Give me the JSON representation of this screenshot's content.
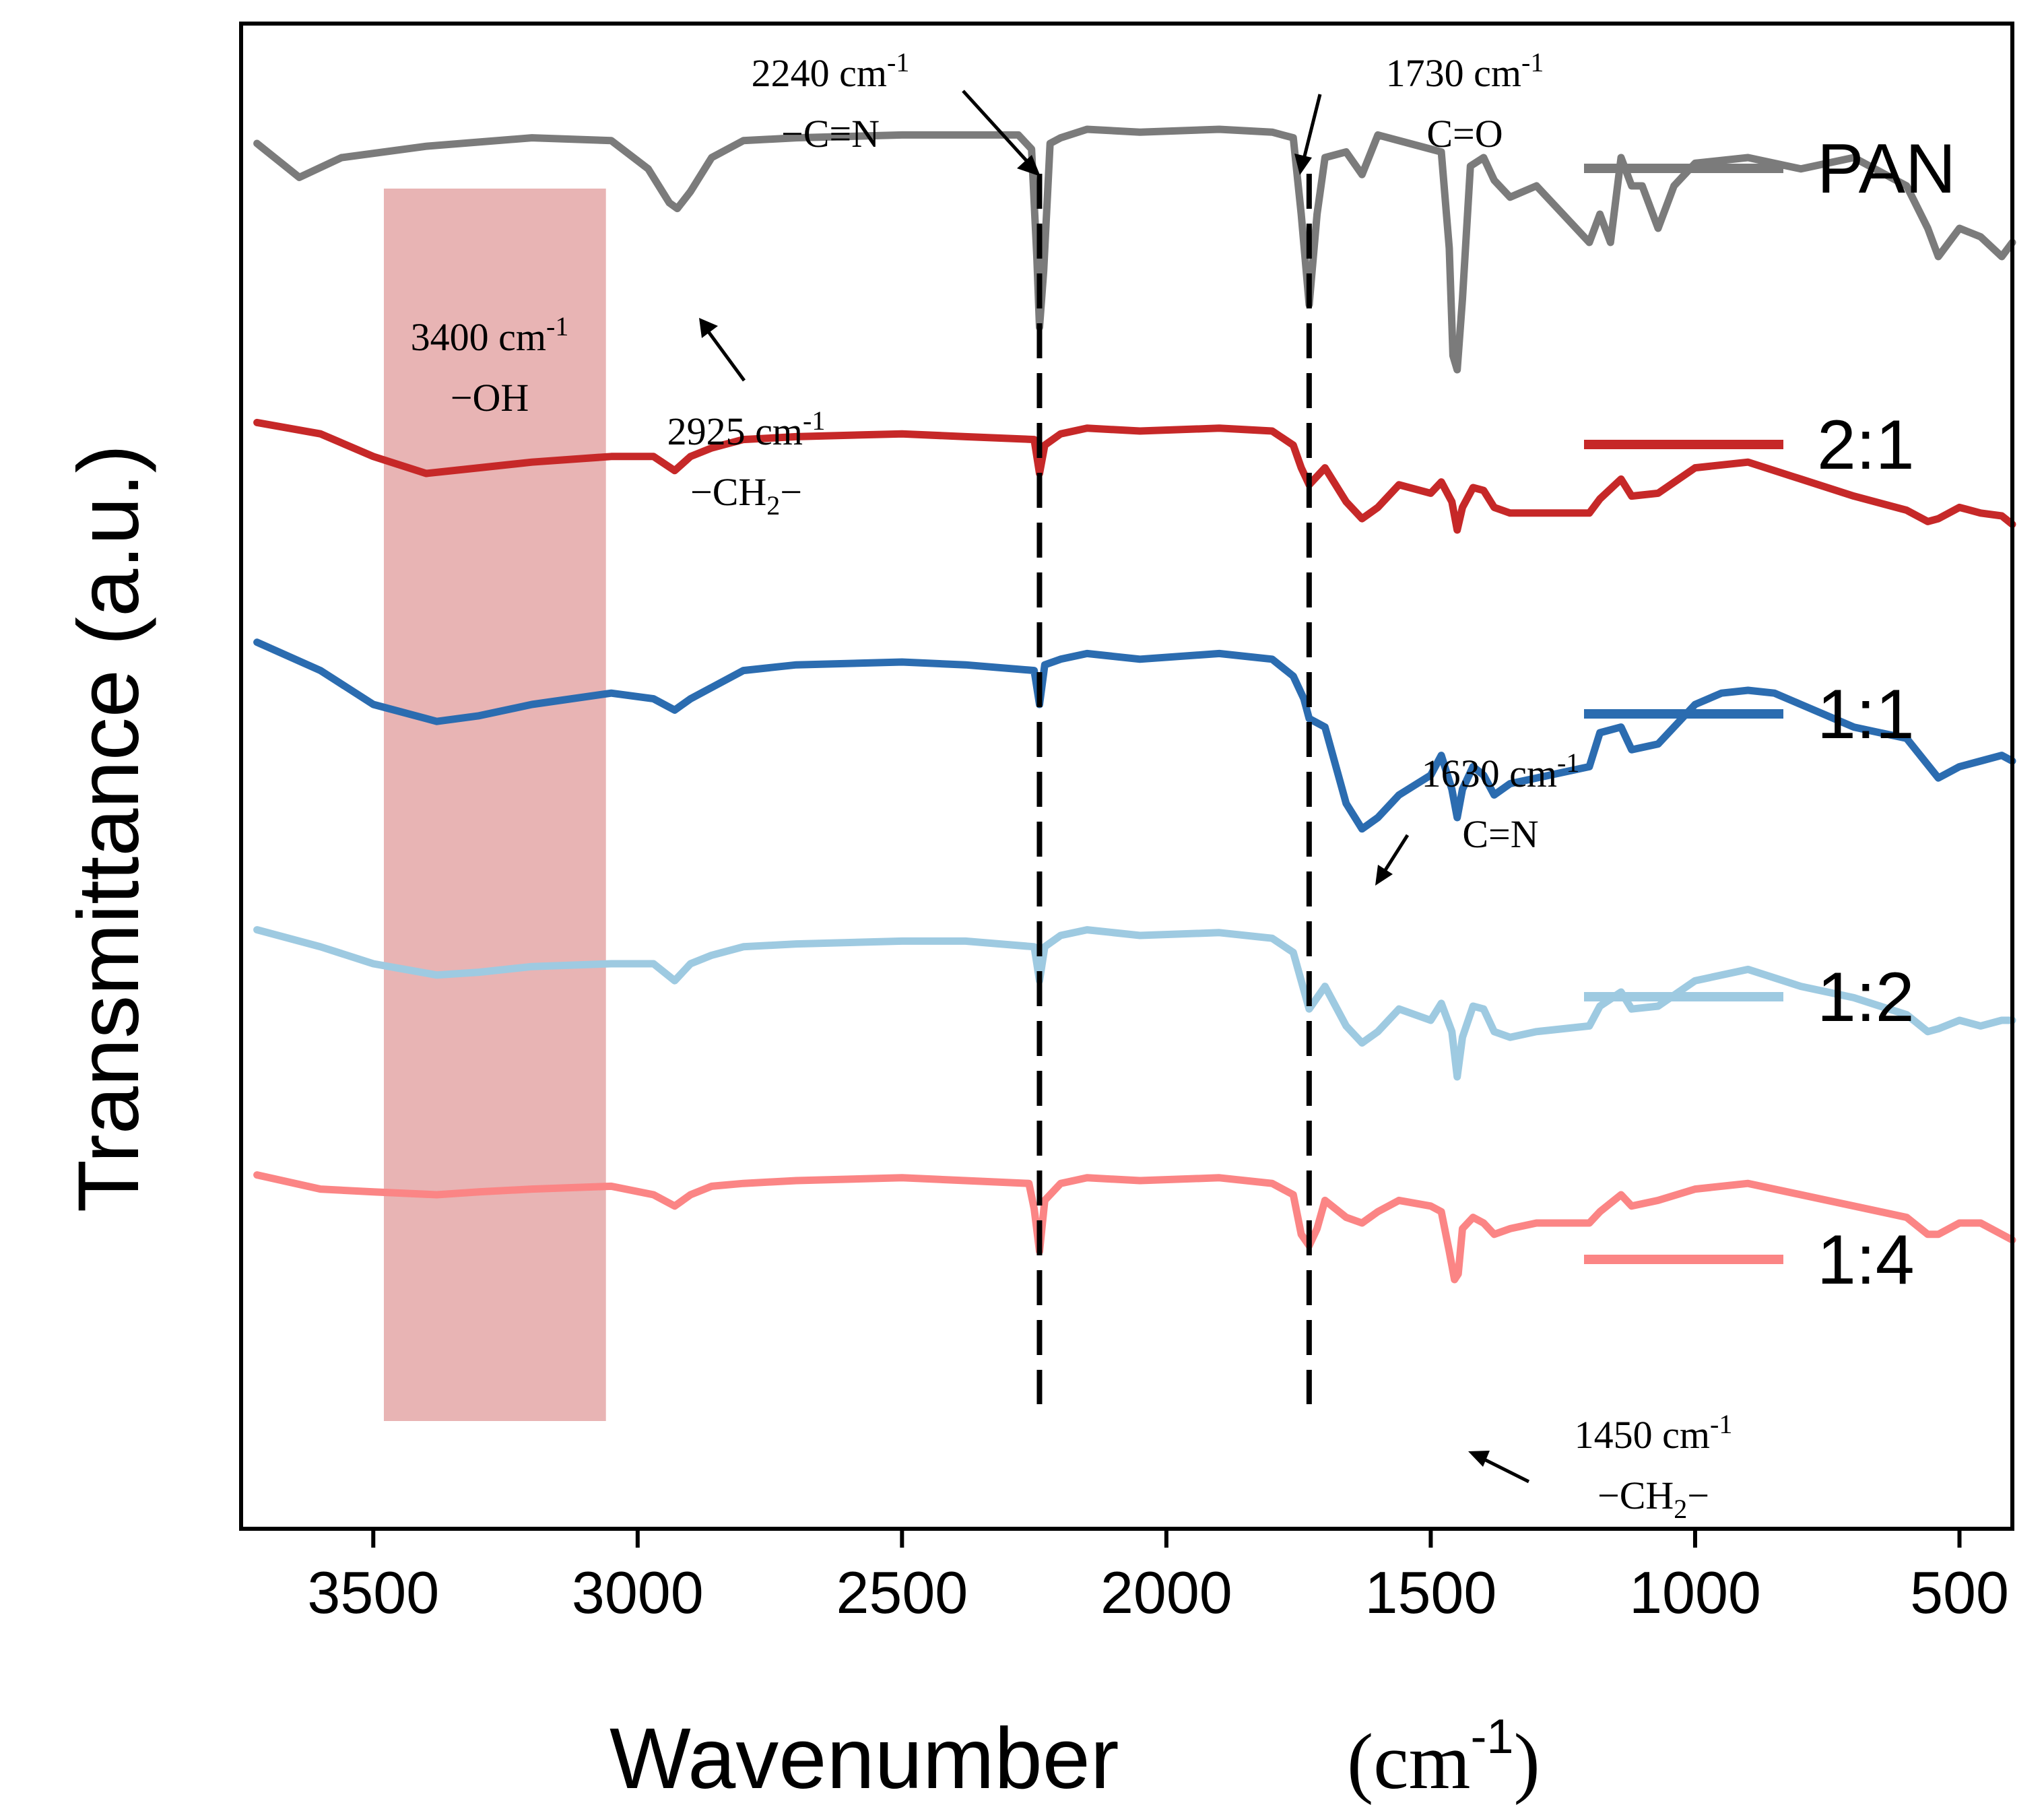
{
  "chart_data": {
    "type": "line",
    "title": "",
    "xlabel": "Wavenumber",
    "xlabel_unit": "(cm",
    "xlabel_unit_exp": "-1",
    "xlabel_unit_close": ")",
    "ylabel": "Transmittance (a.u.)",
    "xlim": [
      3750,
      400
    ],
    "x_reversed": true,
    "x_ticks": [
      3500,
      3000,
      2500,
      2000,
      1500,
      1000,
      500
    ],
    "y_ticks_shown": false,
    "grid": false,
    "legend_position": "right",
    "highlight_band": {
      "x_range": [
        3480,
        3060
      ],
      "color": "#e8b4b4",
      "label": "3400 cm",
      "label_exp": "-1",
      "label_group": "−OH"
    },
    "reference_lines": [
      {
        "x": 2240,
        "style": "dashed",
        "color": "#000000"
      },
      {
        "x": 1730,
        "style": "dashed",
        "color": "#000000"
      }
    ],
    "annotations": [
      {
        "text": "2240 cm",
        "exp": "-1",
        "group": "−C≡N",
        "points_to": 2240,
        "series": "PAN"
      },
      {
        "text": "1730 cm",
        "exp": "-1",
        "group": "C=O",
        "points_to": 1730,
        "series": "PAN"
      },
      {
        "text": "2925 cm",
        "exp": "-1",
        "group_pre": "−CH",
        "group_sub": "2",
        "group_post": "−",
        "points_to": 2925,
        "series": "PAN"
      },
      {
        "text": "1630 cm",
        "exp": "-1",
        "group": "C=N",
        "points_to": 1630,
        "series": "1:1"
      },
      {
        "text": "1450 cm",
        "exp": "-1",
        "group_pre": "−CH",
        "group_sub": "2",
        "group_post": "−",
        "points_to": 1450,
        "series": "1:4"
      }
    ],
    "series": [
      {
        "name": "PAN",
        "color": "#7b7b7b",
        "offset": 0,
        "x": [
          3720,
          3640,
          3560,
          3400,
          3200,
          3050,
          2980,
          2940,
          2925,
          2900,
          2860,
          2800,
          2700,
          2500,
          2380,
          2280,
          2255,
          2245,
          2240,
          2232,
          2220,
          2200,
          2150,
          2050,
          1900,
          1800,
          1760,
          1745,
          1730,
          1715,
          1700,
          1660,
          1630,
          1600,
          1540,
          1480,
          1465,
          1458,
          1450,
          1440,
          1425,
          1400,
          1380,
          1350,
          1300,
          1250,
          1200,
          1180,
          1160,
          1140,
          1120,
          1100,
          1070,
          1040,
          1000,
          900,
          800,
          750,
          700,
          650,
          600,
          560,
          540,
          500,
          460,
          420,
          400
        ],
        "y": [
          0.85,
          0.73,
          0.8,
          0.84,
          0.87,
          0.86,
          0.76,
          0.64,
          0.62,
          0.68,
          0.8,
          0.86,
          0.87,
          0.88,
          0.88,
          0.88,
          0.83,
          0.45,
          0.2,
          0.4,
          0.85,
          0.87,
          0.9,
          0.89,
          0.9,
          0.89,
          0.87,
          0.6,
          0.28,
          0.6,
          0.8,
          0.82,
          0.74,
          0.88,
          0.85,
          0.82,
          0.48,
          0.1,
          0.05,
          0.3,
          0.77,
          0.8,
          0.72,
          0.66,
          0.7,
          0.6,
          0.5,
          0.6,
          0.5,
          0.8,
          0.7,
          0.7,
          0.55,
          0.7,
          0.78,
          0.8,
          0.76,
          0.78,
          0.8,
          0.75,
          0.7,
          0.55,
          0.45,
          0.55,
          0.52,
          0.45,
          0.5
        ]
      },
      {
        "name": "2:1",
        "color": "#c62828",
        "offset": 1,
        "x": [
          3720,
          3600,
          3500,
          3400,
          3300,
          3200,
          3050,
          2970,
          2930,
          2900,
          2860,
          2800,
          2700,
          2500,
          2380,
          2250,
          2240,
          2230,
          2200,
          2150,
          2050,
          1900,
          1800,
          1760,
          1745,
          1730,
          1700,
          1660,
          1630,
          1600,
          1560,
          1500,
          1480,
          1460,
          1450,
          1440,
          1420,
          1400,
          1380,
          1350,
          1300,
          1200,
          1180,
          1140,
          1120,
          1070,
          1000,
          900,
          800,
          700,
          600,
          560,
          540,
          500,
          460,
          420,
          400
        ],
        "y": [
          0.78,
          0.74,
          0.66,
          0.6,
          0.62,
          0.64,
          0.66,
          0.66,
          0.61,
          0.66,
          0.69,
          0.72,
          0.73,
          0.74,
          0.73,
          0.72,
          0.6,
          0.7,
          0.74,
          0.76,
          0.75,
          0.76,
          0.75,
          0.7,
          0.62,
          0.56,
          0.62,
          0.5,
          0.44,
          0.48,
          0.56,
          0.53,
          0.57,
          0.5,
          0.4,
          0.48,
          0.55,
          0.54,
          0.48,
          0.46,
          0.46,
          0.46,
          0.51,
          0.58,
          0.52,
          0.53,
          0.62,
          0.64,
          0.58,
          0.52,
          0.47,
          0.43,
          0.44,
          0.48,
          0.46,
          0.45,
          0.42
        ]
      },
      {
        "name": "1:1",
        "color": "#2b6cb0",
        "offset": 2,
        "x": [
          3720,
          3600,
          3500,
          3380,
          3300,
          3200,
          3050,
          2970,
          2930,
          2900,
          2860,
          2800,
          2700,
          2500,
          2380,
          2250,
          2240,
          2230,
          2200,
          2150,
          2050,
          1900,
          1800,
          1760,
          1740,
          1730,
          1700,
          1660,
          1630,
          1600,
          1560,
          1500,
          1480,
          1460,
          1450,
          1440,
          1420,
          1400,
          1380,
          1350,
          1300,
          1200,
          1180,
          1140,
          1120,
          1070,
          1000,
          950,
          900,
          850,
          800,
          700,
          600,
          540,
          500,
          460,
          420,
          400
        ],
        "y": [
          0.92,
          0.82,
          0.7,
          0.64,
          0.66,
          0.7,
          0.74,
          0.72,
          0.68,
          0.72,
          0.76,
          0.82,
          0.84,
          0.85,
          0.84,
          0.82,
          0.7,
          0.84,
          0.86,
          0.88,
          0.86,
          0.88,
          0.86,
          0.8,
          0.72,
          0.65,
          0.62,
          0.35,
          0.26,
          0.3,
          0.38,
          0.45,
          0.52,
          0.4,
          0.3,
          0.4,
          0.48,
          0.45,
          0.38,
          0.42,
          0.44,
          0.48,
          0.6,
          0.62,
          0.54,
          0.56,
          0.7,
          0.74,
          0.75,
          0.74,
          0.7,
          0.62,
          0.58,
          0.44,
          0.48,
          0.5,
          0.52,
          0.5
        ]
      },
      {
        "name": "1:2",
        "color": "#9ecae1",
        "offset": 3,
        "x": [
          3720,
          3600,
          3500,
          3380,
          3300,
          3200,
          3050,
          2970,
          2930,
          2900,
          2860,
          2800,
          2700,
          2500,
          2380,
          2250,
          2240,
          2230,
          2200,
          2150,
          2050,
          1900,
          1800,
          1760,
          1745,
          1730,
          1700,
          1660,
          1630,
          1600,
          1560,
          1500,
          1480,
          1460,
          1450,
          1440,
          1420,
          1400,
          1380,
          1350,
          1300,
          1200,
          1180,
          1140,
          1120,
          1070,
          1000,
          900,
          800,
          700,
          600,
          560,
          540,
          500,
          460,
          420,
          400
        ],
        "y": [
          0.82,
          0.76,
          0.7,
          0.66,
          0.67,
          0.69,
          0.7,
          0.7,
          0.64,
          0.7,
          0.73,
          0.76,
          0.77,
          0.78,
          0.78,
          0.76,
          0.64,
          0.76,
          0.8,
          0.82,
          0.8,
          0.81,
          0.79,
          0.74,
          0.64,
          0.54,
          0.62,
          0.48,
          0.42,
          0.46,
          0.54,
          0.5,
          0.56,
          0.46,
          0.3,
          0.44,
          0.55,
          0.54,
          0.46,
          0.44,
          0.46,
          0.48,
          0.55,
          0.6,
          0.54,
          0.55,
          0.64,
          0.68,
          0.62,
          0.58,
          0.52,
          0.46,
          0.47,
          0.5,
          0.48,
          0.5,
          0.5
        ]
      },
      {
        "name": "1:4",
        "color": "#fb8585",
        "offset": 4,
        "x": [
          3720,
          3600,
          3500,
          3380,
          3300,
          3200,
          3050,
          2970,
          2930,
          2900,
          2860,
          2800,
          2700,
          2500,
          2380,
          2260,
          2250,
          2240,
          2230,
          2200,
          2150,
          2050,
          1900,
          1800,
          1760,
          1745,
          1730,
          1715,
          1700,
          1660,
          1630,
          1600,
          1560,
          1500,
          1480,
          1465,
          1455,
          1448,
          1440,
          1420,
          1400,
          1380,
          1350,
          1300,
          1200,
          1180,
          1140,
          1120,
          1070,
          1000,
          900,
          800,
          700,
          600,
          560,
          540,
          500,
          460,
          420,
          400
        ],
        "y": [
          0.87,
          0.82,
          0.81,
          0.8,
          0.81,
          0.82,
          0.83,
          0.8,
          0.76,
          0.8,
          0.83,
          0.84,
          0.85,
          0.86,
          0.85,
          0.84,
          0.75,
          0.6,
          0.78,
          0.84,
          0.86,
          0.85,
          0.86,
          0.84,
          0.8,
          0.66,
          0.62,
          0.68,
          0.78,
          0.72,
          0.7,
          0.74,
          0.78,
          0.76,
          0.74,
          0.6,
          0.5,
          0.52,
          0.68,
          0.72,
          0.7,
          0.66,
          0.68,
          0.7,
          0.7,
          0.74,
          0.8,
          0.76,
          0.78,
          0.82,
          0.84,
          0.8,
          0.76,
          0.72,
          0.66,
          0.66,
          0.7,
          0.7,
          0.66,
          0.64
        ]
      }
    ]
  }
}
